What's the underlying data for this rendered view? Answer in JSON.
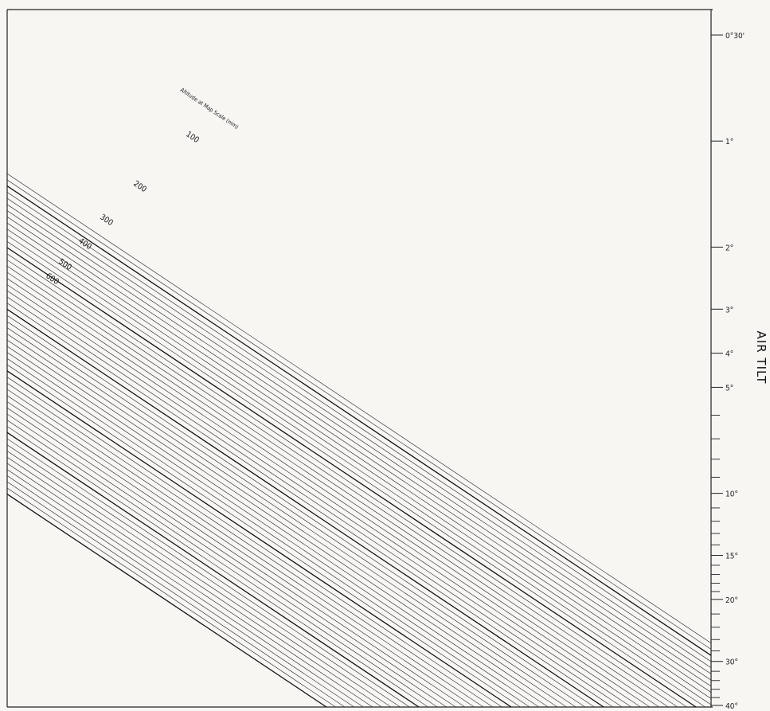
{
  "chart_data": {
    "type": "line",
    "description_axis": "AIR TILT",
    "right_axis": {
      "label": "AIR TILT",
      "scale": "log",
      "range_degrees": [
        0.5,
        40
      ],
      "labeled_ticks": [
        {
          "label": "0°30'",
          "value": 0.5
        },
        {
          "label": "1°",
          "value": 1
        },
        {
          "label": "2°",
          "value": 2
        },
        {
          "label": "3°",
          "value": 3
        },
        {
          "label": "4°",
          "value": 4
        },
        {
          "label": "5°",
          "value": 5
        },
        {
          "label": "10°",
          "value": 10
        },
        {
          "label": "15°",
          "value": 15
        },
        {
          "label": "20°",
          "value": 20
        },
        {
          "label": "30°",
          "value": 30
        },
        {
          "label": "40°",
          "value": 40
        }
      ],
      "minor_ticks": [
        6,
        7,
        8,
        9,
        11,
        12,
        13,
        14,
        16,
        17,
        18,
        19,
        22,
        24,
        26,
        28,
        32,
        34,
        36,
        38
      ]
    },
    "family_caption": "Altitude at Map Scale (mm)",
    "family_labels": [
      {
        "text": "100",
        "value": 100
      },
      {
        "text": "200",
        "value": 200
      },
      {
        "text": "300",
        "value": 300
      },
      {
        "text": "400",
        "value": 400
      },
      {
        "text": "500",
        "value": 500
      },
      {
        "text": "600",
        "value": 600
      }
    ],
    "family_range": [
      100,
      600
    ],
    "family_step": 10,
    "series_note": "Parallel diagonal lines, one per altitude value from 100 to 600 mm in steps of 10; heavier line every 100."
  }
}
